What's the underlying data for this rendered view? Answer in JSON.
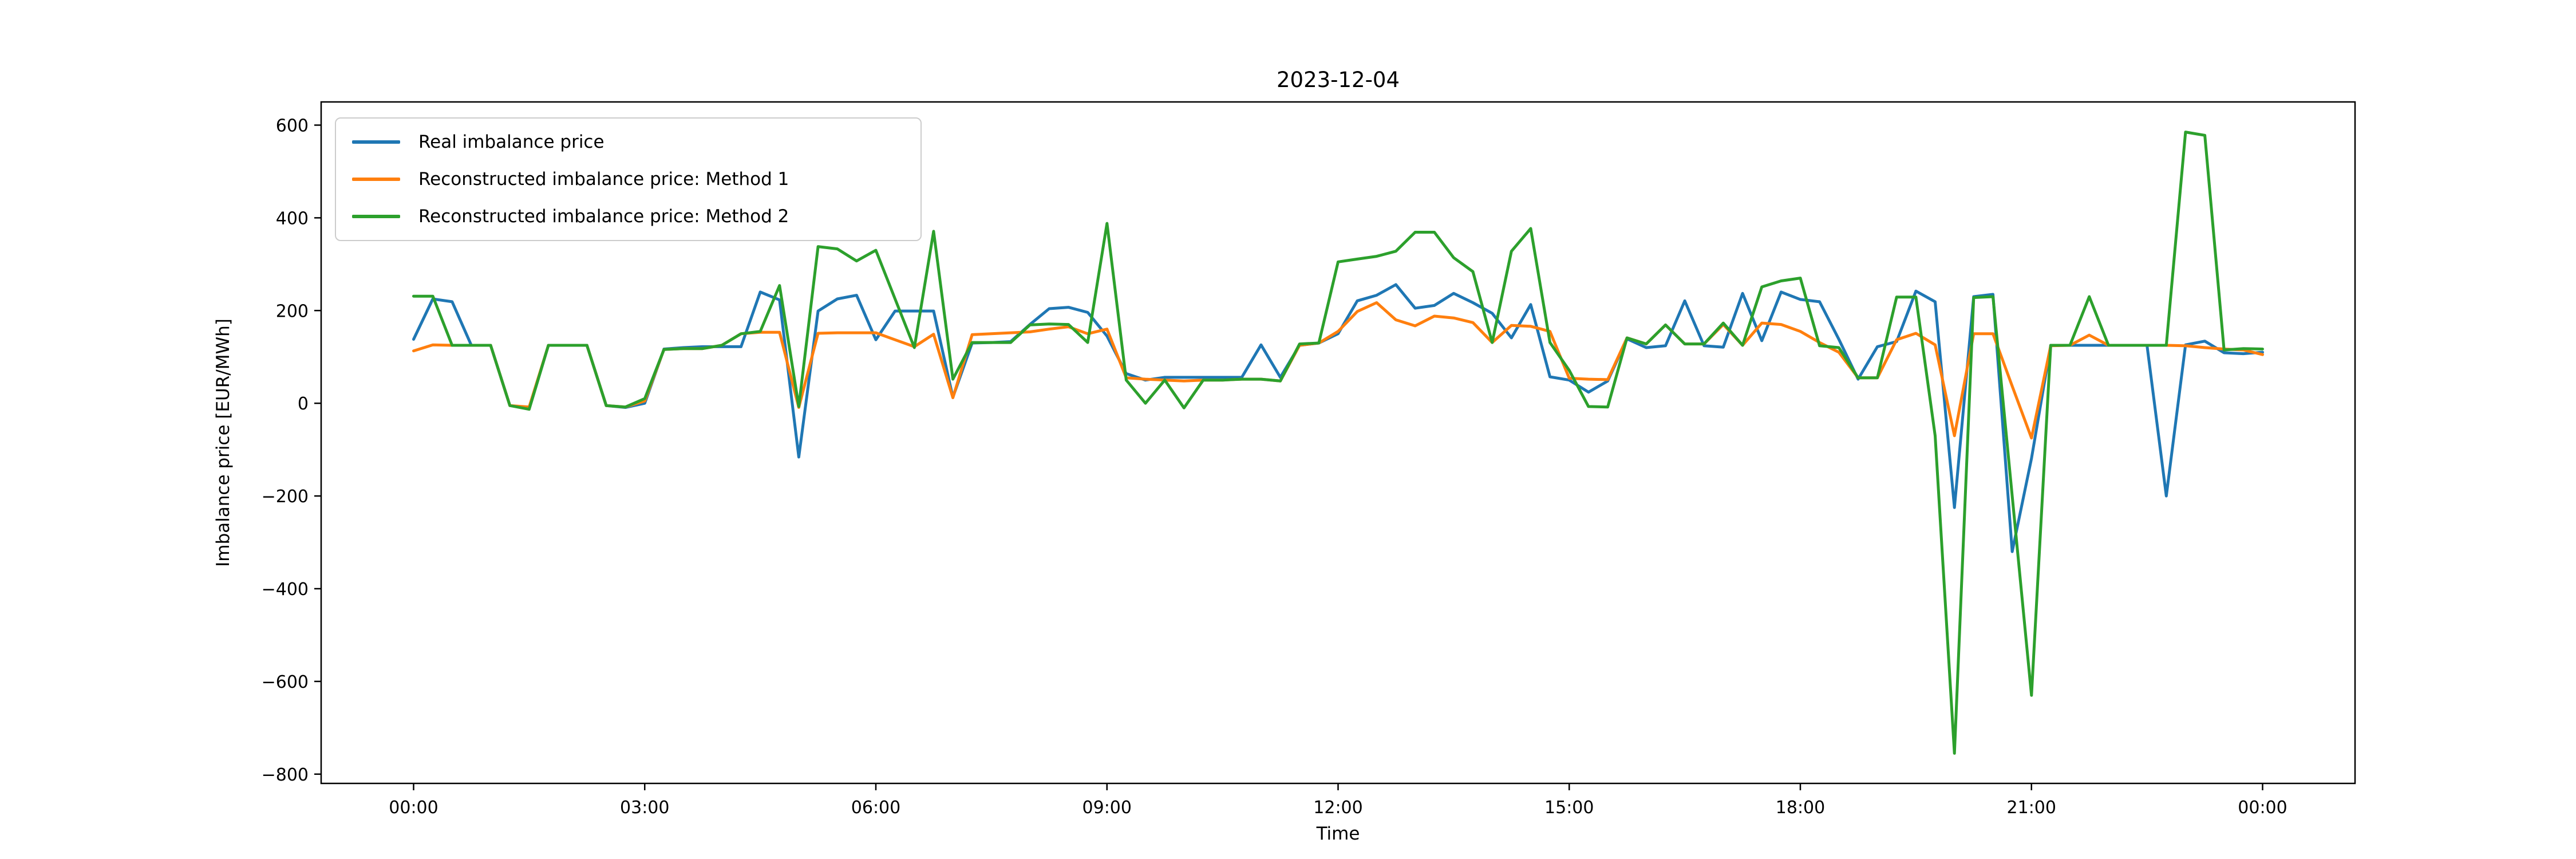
{
  "chart_data": {
    "type": "line",
    "title": "2023-12-04",
    "xlabel": "Time",
    "ylabel": "Imbalance price [EUR/MWh]",
    "grid": false,
    "legend_position": "upper left",
    "time_step_minutes": 15,
    "x_start_time": "00:00",
    "x_tick_minutes": [
      0,
      180,
      360,
      540,
      720,
      900,
      1080,
      1260,
      1440
    ],
    "x_tick_labels": [
      "00:00",
      "03:00",
      "06:00",
      "09:00",
      "12:00",
      "15:00",
      "18:00",
      "21:00",
      "00:00"
    ],
    "y_ticks": [
      600,
      400,
      200,
      0,
      -200,
      -400,
      -600,
      -800
    ],
    "ylim": [
      -820,
      650
    ],
    "xlim_minutes": [
      -72,
      1512
    ],
    "series": [
      {
        "name": "Real imbalance price",
        "color": "#1f77b4",
        "values": [
          138,
          225,
          219,
          125,
          125,
          -5,
          -12,
          125,
          125,
          125,
          -5,
          -9,
          0,
          117,
          120,
          122,
          122,
          122,
          240,
          223,
          -116,
          199,
          225,
          233,
          137,
          199,
          199,
          199,
          13,
          130,
          131,
          133,
          170,
          204,
          207,
          196,
          145,
          64,
          50,
          56,
          56,
          56,
          56,
          56,
          126,
          56,
          125,
          130,
          150,
          221,
          233,
          256,
          205,
          211,
          237,
          217,
          194,
          141,
          213,
          57,
          50,
          24,
          48,
          139,
          120,
          124,
          221,
          124,
          121,
          237,
          135,
          240,
          224,
          219,
          138,
          52,
          122,
          133,
          242,
          219,
          -225,
          230,
          235,
          -320,
          -119,
          125,
          125,
          125,
          125,
          125,
          125,
          -200,
          126,
          134,
          109,
          107,
          110
        ]
      },
      {
        "name": "Reconstructed imbalance price: Method 1",
        "color": "#ff7f0e",
        "values": [
          113,
          126,
          125,
          125,
          125,
          -5,
          -8,
          125,
          125,
          125,
          -5,
          -8,
          5,
          116,
          118,
          118,
          125,
          150,
          153,
          153,
          -9,
          151,
          152,
          152,
          152,
          137,
          122,
          149,
          12,
          148,
          150,
          152,
          154,
          160,
          165,
          150,
          160,
          55,
          52,
          50,
          48,
          50,
          50,
          52,
          52,
          48,
          125,
          130,
          155,
          198,
          217,
          180,
          167,
          188,
          184,
          174,
          131,
          168,
          166,
          155,
          54,
          52,
          51,
          141,
          128,
          169,
          128,
          128,
          170,
          125,
          173,
          170,
          155,
          131,
          110,
          55,
          55,
          137,
          151,
          126,
          -70,
          150,
          150,
          37,
          -75,
          124,
          125,
          147,
          125,
          125,
          125,
          125,
          124,
          120,
          117,
          115,
          105
        ]
      },
      {
        "name": "Reconstructed imbalance price: Method 2",
        "color": "#2ca02c",
        "values": [
          231,
          231,
          125,
          125,
          125,
          -5,
          -13,
          125,
          125,
          125,
          -5,
          -8,
          10,
          116,
          118,
          118,
          125,
          150,
          155,
          254,
          -7,
          338,
          333,
          307,
          330,
          225,
          120,
          371,
          52,
          131,
          131,
          131,
          169,
          171,
          170,
          131,
          388,
          50,
          0,
          50,
          -10,
          50,
          50,
          52,
          52,
          48,
          128,
          130,
          305,
          311,
          317,
          328,
          369,
          369,
          314,
          284,
          131,
          328,
          377,
          131,
          71,
          -7,
          -8,
          141,
          128,
          169,
          128,
          128,
          173,
          125,
          251,
          264,
          270,
          124,
          120,
          55,
          55,
          229,
          229,
          -70,
          -755,
          228,
          230,
          -200,
          -630,
          125,
          125,
          230,
          125,
          125,
          125,
          125,
          585,
          578,
          115,
          118,
          117
        ]
      }
    ]
  }
}
